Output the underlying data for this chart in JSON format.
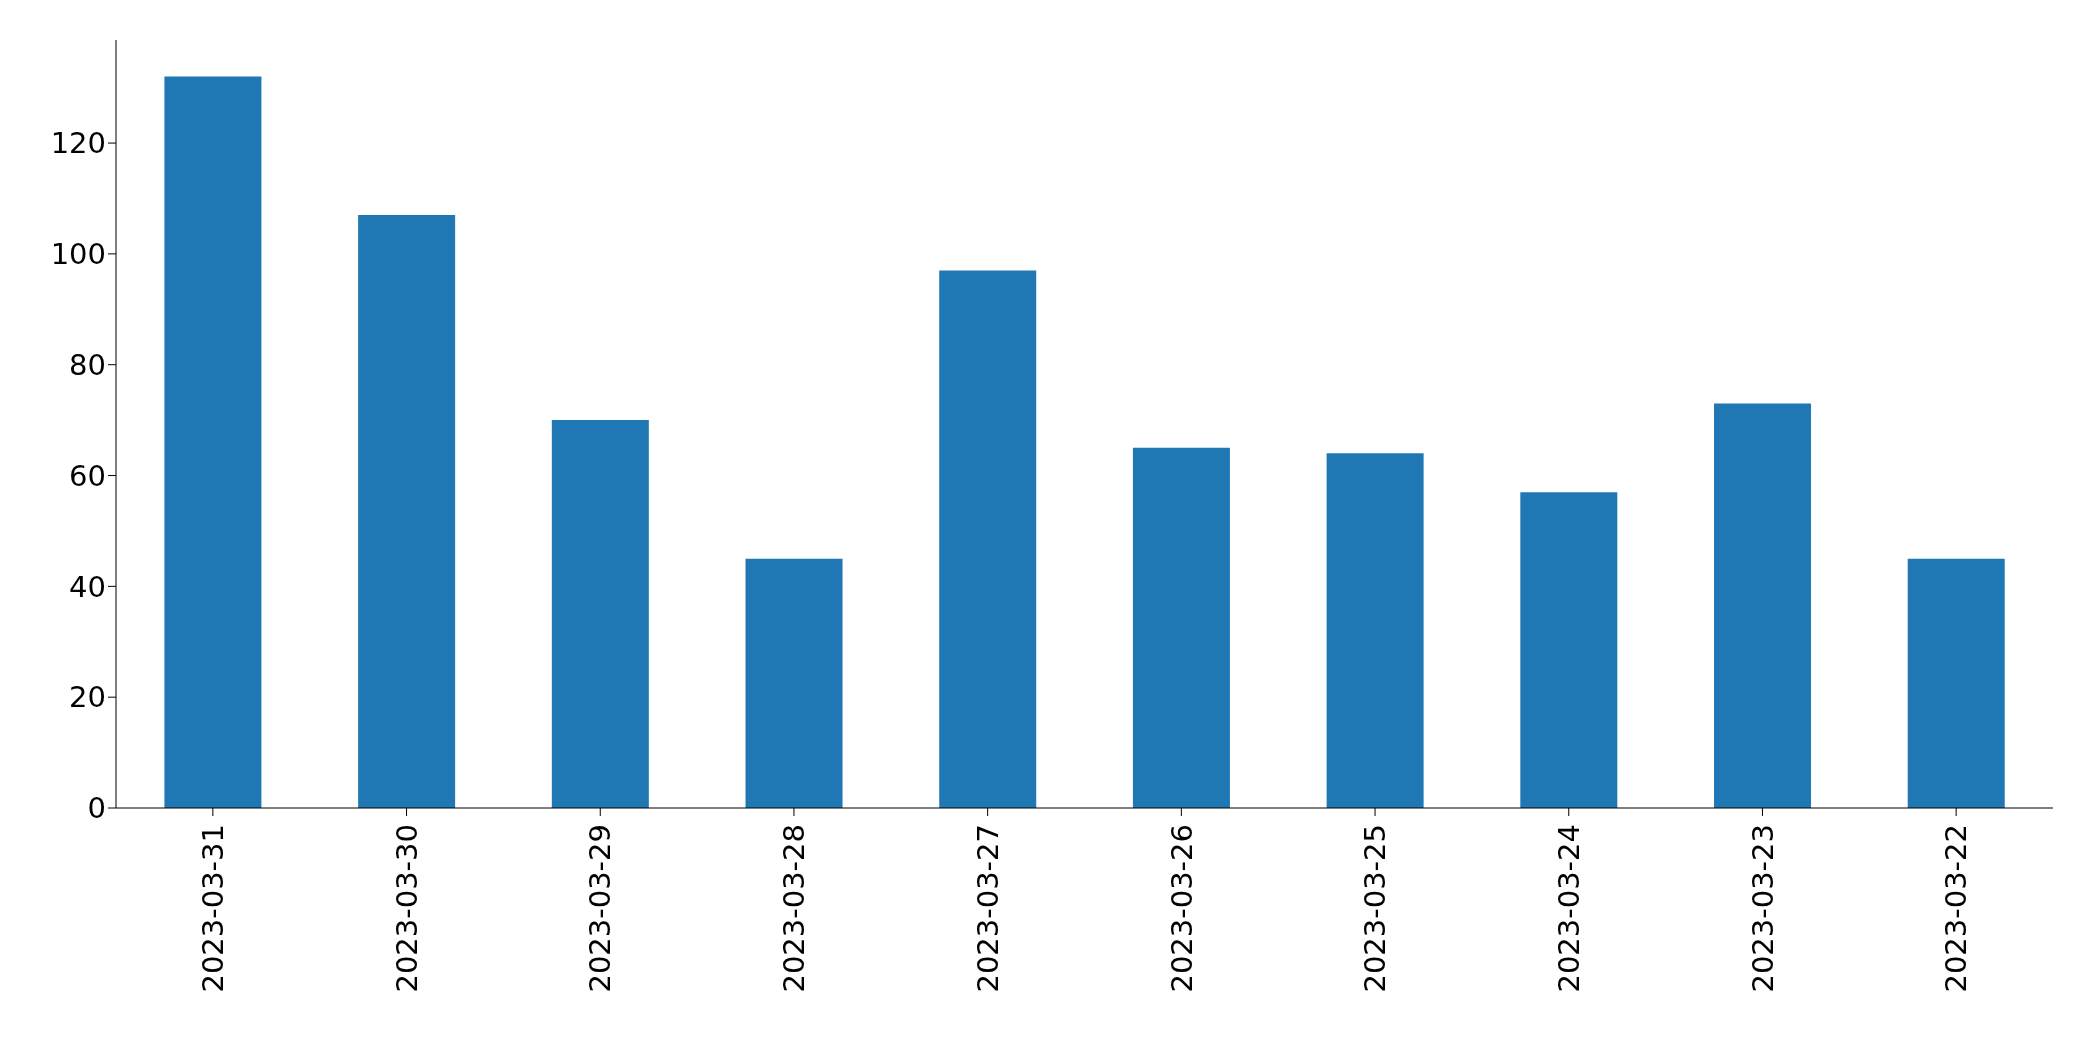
{
  "chart_data": {
    "type": "bar",
    "categories": [
      "2023-03-31",
      "2023-03-30",
      "2023-03-29",
      "2023-03-28",
      "2023-03-27",
      "2023-03-26",
      "2023-03-25",
      "2023-03-24",
      "2023-03-23",
      "2023-03-22"
    ],
    "values": [
      132,
      107,
      70,
      45,
      97,
      65,
      64,
      57,
      73,
      45
    ],
    "color": "#1f77b4",
    "ylim": [
      0,
      138.6
    ],
    "yticks": [
      0,
      20,
      40,
      60,
      80,
      100,
      120
    ]
  }
}
